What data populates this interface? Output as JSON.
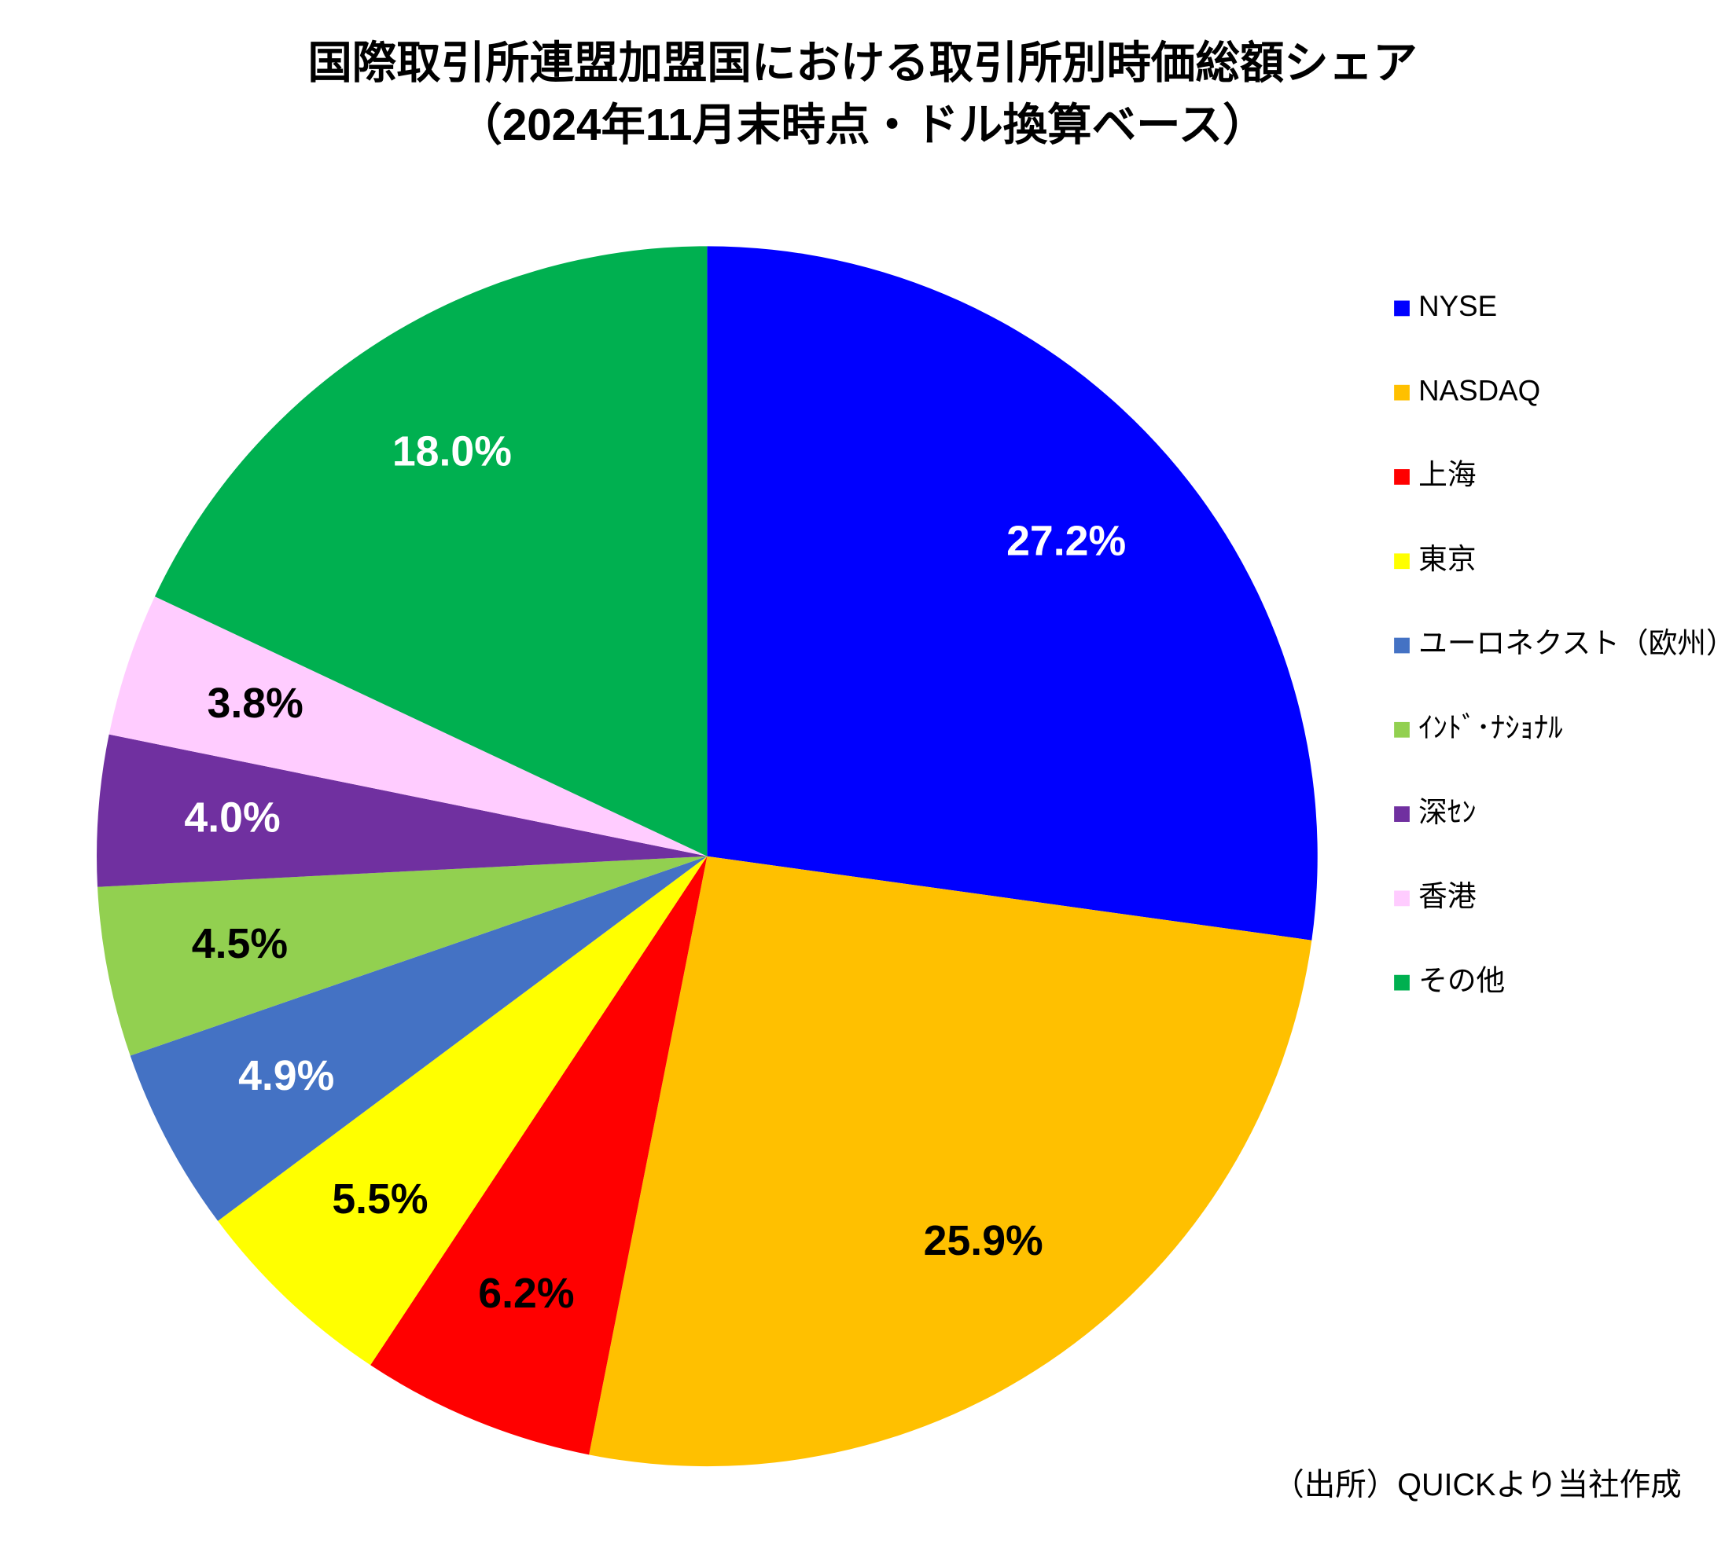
{
  "chart_data": {
    "type": "pie",
    "title": "国際取引所連盟加盟国における取引所別時価総額シェア",
    "subtitle": "（2024年11月末時点・ドル換算ベース）",
    "categories": [
      "NYSE",
      "NASDAQ",
      "上海",
      "東京",
      "ユーロネクスト（欧州）",
      "ｲﾝﾄﾞ･ﾅｼｮﾅﾙ",
      "深ｾﾝ",
      "香港",
      "その他"
    ],
    "values": [
      27.2,
      25.9,
      6.2,
      5.5,
      4.9,
      4.5,
      4.0,
      3.8,
      18.0
    ],
    "value_labels": [
      "27.2%",
      "25.9%",
      "6.2%",
      "5.5%",
      "4.9%",
      "4.5%",
      "4.0%",
      "3.8%",
      "18.0%"
    ],
    "colors": [
      "#0000ff",
      "#ffc000",
      "#ff0000",
      "#ffff00",
      "#4472c4",
      "#92d050",
      "#7030a0",
      "#ffccff",
      "#00b050"
    ],
    "label_colors": [
      "#ffffff",
      "#000000",
      "#000000",
      "#000000",
      "#ffffff",
      "#000000",
      "#ffffff",
      "#000000",
      "#ffffff"
    ],
    "legend": "right",
    "source": "（出所）QUICKより当社作成"
  }
}
